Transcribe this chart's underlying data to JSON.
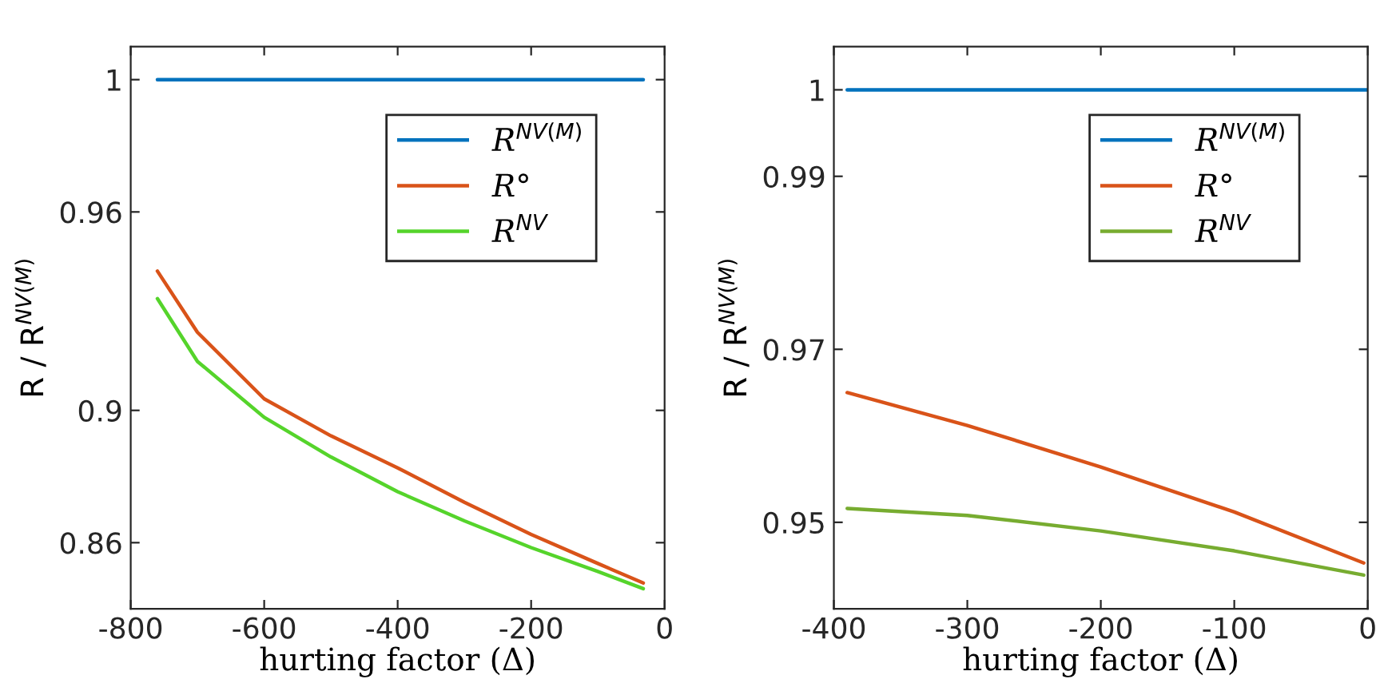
{
  "chart_data": [
    {
      "type": "line",
      "xlabel": "hurting factor (Δ)",
      "ylabel": "R / R$^{NV(M)}$",
      "xlim": [
        -800,
        0
      ],
      "xticks": [
        -800,
        -600,
        -400,
        -200,
        0
      ],
      "ylim": [
        0.84,
        1.01
      ],
      "yticks": [
        0.86,
        0.9,
        0.96,
        1
      ],
      "grid": false,
      "legend": "top right",
      "marker": "none",
      "line_style": "solid",
      "series": [
        {
          "name": "R$^{NV(M)}$",
          "color": "#0072bd",
          "x": [
            -760,
            -32
          ],
          "values": [
            1,
            1
          ]
        },
        {
          "name": "R°",
          "color": "#d95319",
          "x": [
            -760,
            -700,
            -600,
            -500,
            -400,
            -300,
            -200,
            -100,
            -32
          ],
          "values": [
            0.9421,
            0.9236,
            0.9035,
            0.8923,
            0.8826,
            0.8722,
            0.8625,
            0.8537,
            0.8478
          ]
        },
        {
          "name": "R$^{NV}$",
          "color": "#55d42b",
          "x": [
            -760,
            -700,
            -600,
            -500,
            -400,
            -300,
            -200,
            -100,
            -32
          ],
          "values": [
            0.9338,
            0.9148,
            0.8979,
            0.8859,
            0.8754,
            0.8666,
            0.8585,
            0.8513,
            0.8461
          ]
        }
      ]
    },
    {
      "type": "line",
      "xlabel": "hurting factor (Δ)",
      "ylabel": "R / R$^{NV(M)}$",
      "xlim": [
        -400,
        0
      ],
      "xticks": [
        -400,
        -300,
        -200,
        -100,
        0
      ],
      "ylim": [
        0.94,
        1.005
      ],
      "yticks": [
        0.95,
        0.97,
        0.99,
        1
      ],
      "grid": false,
      "legend": "top right",
      "marker": "none",
      "line_style": "solid",
      "series": [
        {
          "name": "R$^{NV(M)}$",
          "color": "#0072bd",
          "x": [
            -390,
            0
          ],
          "values": [
            1,
            1
          ]
        },
        {
          "name": "R°",
          "color": "#d95319",
          "x": [
            -390,
            -300,
            -200,
            -100,
            -3
          ],
          "values": [
            0.965,
            0.9612,
            0.9564,
            0.9512,
            0.9453
          ]
        },
        {
          "name": "R$^{NV}$",
          "color": "#77ac30",
          "x": [
            -390,
            -300,
            -200,
            -100,
            -3
          ],
          "values": [
            0.9516,
            0.9508,
            0.949,
            0.9467,
            0.9439
          ]
        }
      ]
    }
  ]
}
